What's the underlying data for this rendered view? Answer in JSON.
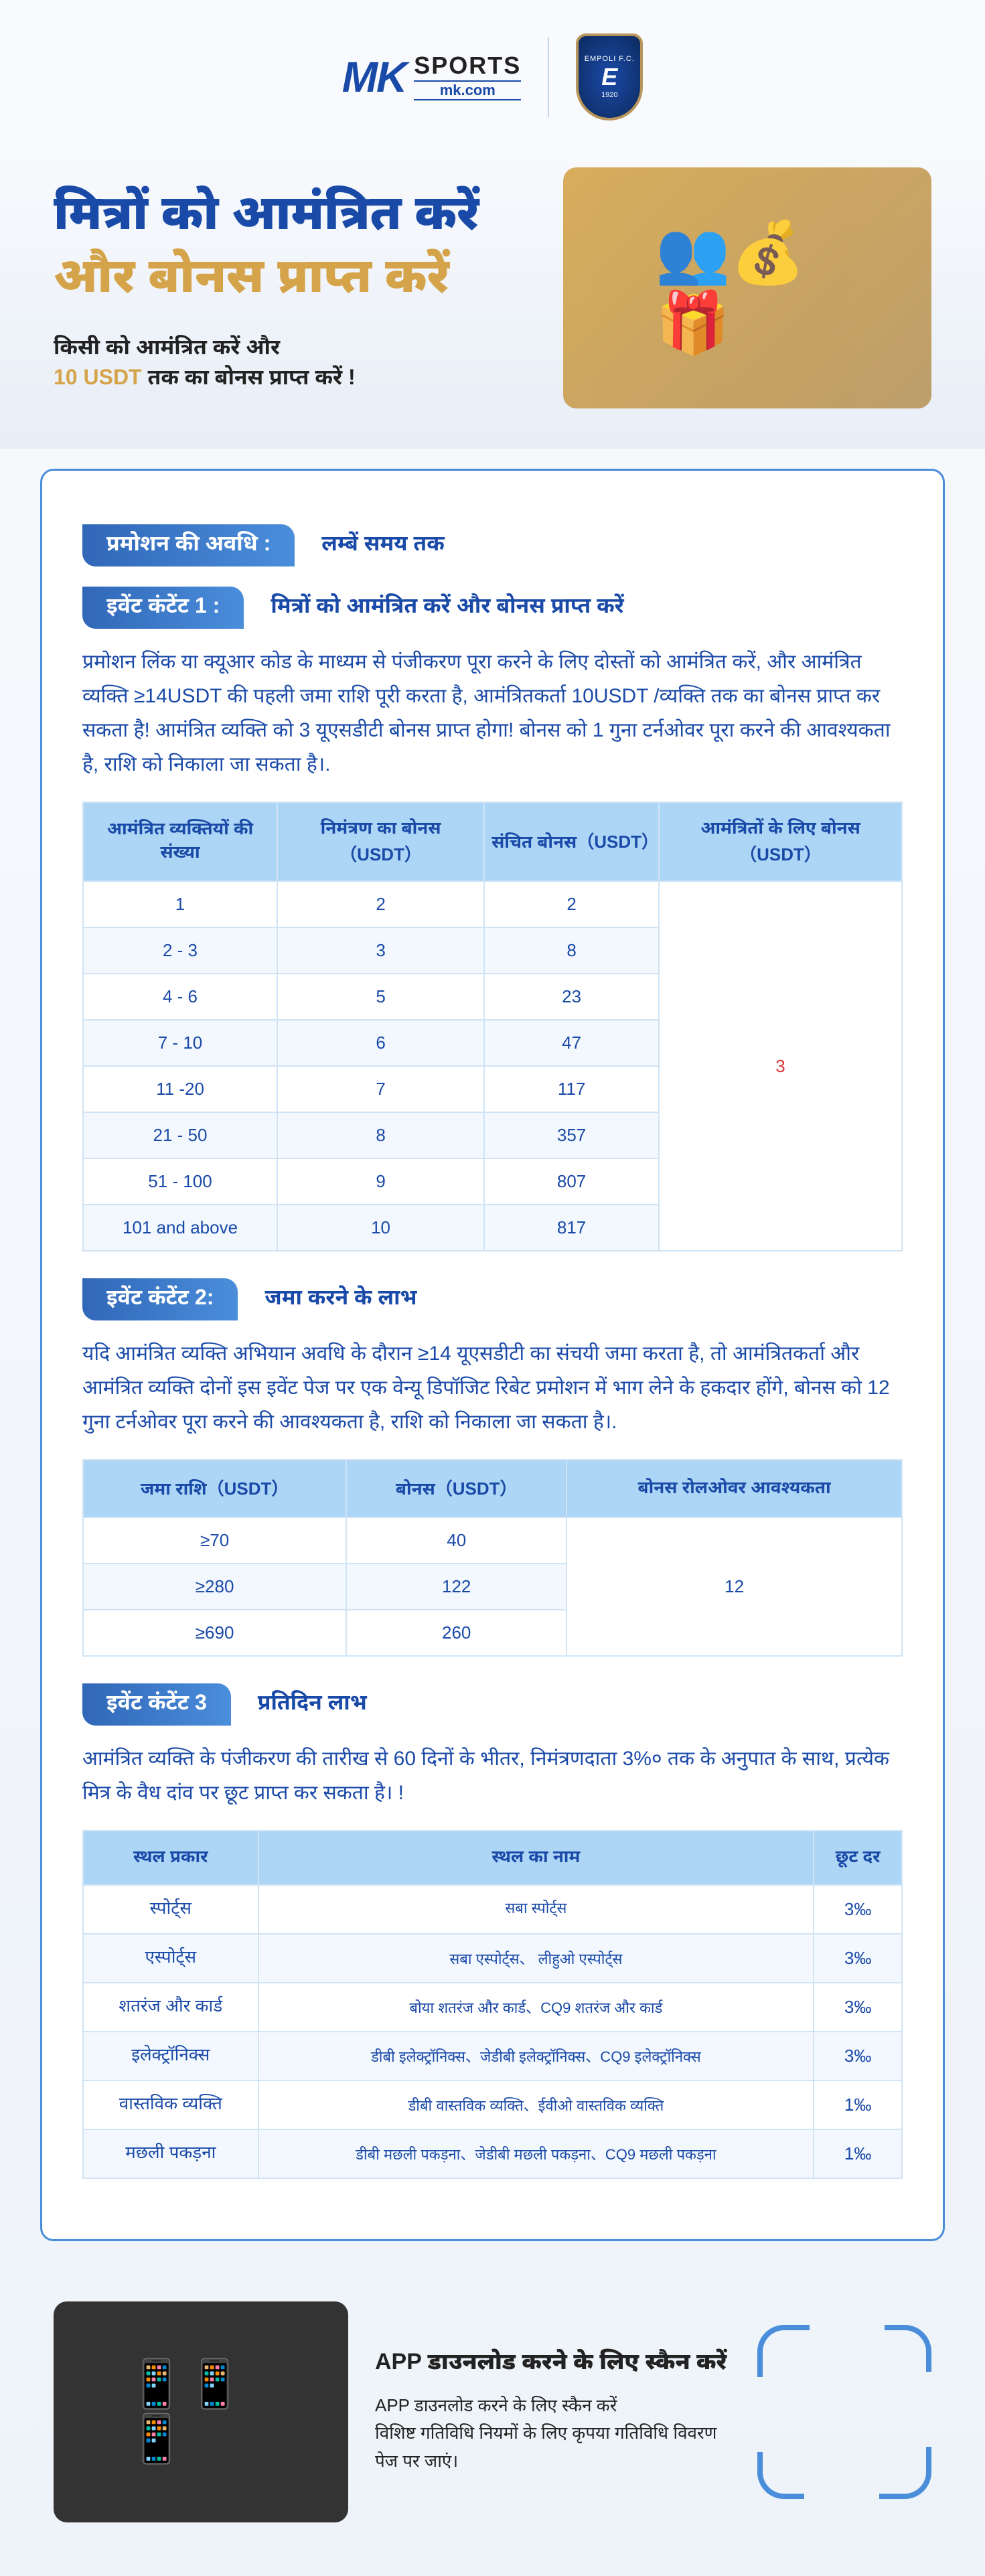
{
  "brand": {
    "mk": "MK",
    "sports": "SPORTS",
    "domain": "mk.com",
    "badge_top": "EMPOLI F.C.",
    "badge_mid": "E",
    "badge_year": "1920"
  },
  "hero": {
    "h1": "मित्रों को आमंत्रित करें",
    "h2": "और बोनस प्राप्त करें",
    "line1": "किसी को आमंत्रित करें और",
    "usdt": "10 USDT",
    "line2": " तक का बोनस प्राप्त करें !"
  },
  "period": {
    "pill": "प्रमोशन की अवधि :",
    "text": "लम्बें समय तक"
  },
  "ev1": {
    "pill": "इवेंट कंटेंट 1 :",
    "sub": "मित्रों को आमंत्रित करें और बोनस प्राप्त करें",
    "para": "प्रमोशन लिंक या क्यूआर कोड के माध्यम से पंजीकरण पूरा करने के लिए दोस्तों को आमंत्रित करें, और आमंत्रित व्यक्ति ≥14USDT की पहली जमा राशि पूरी करता है, आमंत्रितकर्ता 10USDT /व्यक्ति तक का बोनस प्राप्त कर सकता है! आमंत्रित व्यक्ति को 3 यूएसडीटी बोनस प्राप्त होगा! बोनस को 1 गुना टर्नओवर पूरा करने की आवश्यकता है, राशि को निकाला जा सकता है।.",
    "headers": [
      "आमंत्रित व्यक्तियों की संख्या",
      "निमंत्रण का बोनस（USDT）",
      "संचित बोनस（USDT）",
      "आमंत्रितों के लिए बोनस（USDT）"
    ],
    "rows": [
      [
        "1",
        "2",
        "2"
      ],
      [
        "2 - 3",
        "3",
        "8"
      ],
      [
        "4 - 6",
        "5",
        "23"
      ],
      [
        "7 - 10",
        "6",
        "47"
      ],
      [
        "11 -20",
        "7",
        "117"
      ],
      [
        "21 - 50",
        "8",
        "357"
      ],
      [
        "51 - 100",
        "9",
        "807"
      ],
      [
        "101 and above",
        "10",
        "817"
      ]
    ],
    "merged": "3"
  },
  "ev2": {
    "pill": "इवेंट कंटेंट 2:",
    "sub": "जमा करने के लाभ",
    "para": "यदि आमंत्रित व्यक्ति अभियान अवधि के दौरान ≥14 यूएसडीटी का संचयी जमा करता है, तो आमंत्रितकर्ता और आमंत्रित व्यक्ति दोनों इस इवेंट पेज पर एक वेन्यू डिपॉजिट रिबेट प्रमोशन में भाग लेने के हकदार होंगे, बोनस को 12 गुना टर्नओवर पूरा करने की आवश्यकता है, राशि को निकाला जा सकता है।.",
    "headers": [
      "जमा राशि（USDT）",
      "बोनस（USDT）",
      "बोनस रोलओवर आवश्यकता"
    ],
    "rows": [
      [
        "≥70",
        "40"
      ],
      [
        "≥280",
        "122"
      ],
      [
        "≥690",
        "260"
      ]
    ],
    "merged": "12"
  },
  "ev3": {
    "pill": "इवेंट कंटेंट 3",
    "sub": "प्रतिदिन लाभ",
    "para": "आमंत्रित व्यक्ति के पंजीकरण की तारीख से 60 दिनों के भीतर, निमंत्रणदाता 3%० तक के अनुपात के साथ, प्रत्येक मित्र के वैध दांव पर छूट प्राप्त कर सकता है। !",
    "headers": [
      "स्थल प्रकार",
      "स्थल का नाम",
      "छूट दर"
    ],
    "rows": [
      [
        "स्पोर्ट्स",
        "सबा स्पोर्ट्स",
        "3‰"
      ],
      [
        "एस्पोर्ट्स",
        "सबा एस्पोर्ट्स、 लीहुओ एस्पोर्ट्स",
        "3‰"
      ],
      [
        "शतरंज और कार्ड",
        "बोया शतरंज और कार्ड、CQ9 शतरंज और कार्ड",
        "3‰"
      ],
      [
        "इलेक्ट्रॉनिक्स",
        "डीबी इलेक्ट्रॉनिक्स、जेडीबी इलेक्ट्रॉनिक्स、CQ9 इलेक्ट्रॉनिक्स",
        "3‰"
      ],
      [
        "वास्तविक व्यक्ति",
        "डीबी वास्तविक व्यक्ति、ईवीओ वास्तविक व्यक्ति",
        "1‰"
      ],
      [
        "मछली पकड़ना",
        "डीबी मछली पकड़ना、जेडीबी मछली पकड़ना、CQ9 मछली पकड़ना",
        "1‰"
      ]
    ]
  },
  "footer": {
    "h": "APP डाउनलोड करने के लिए स्कैन करें",
    "p1": "APP डाउनलोड करने के लिए स्कैन करें",
    "p2": "विशिष्ट गतिविधि नियमों के लिए कृपया गतिविधि विवरण पेज पर जाएं।"
  }
}
